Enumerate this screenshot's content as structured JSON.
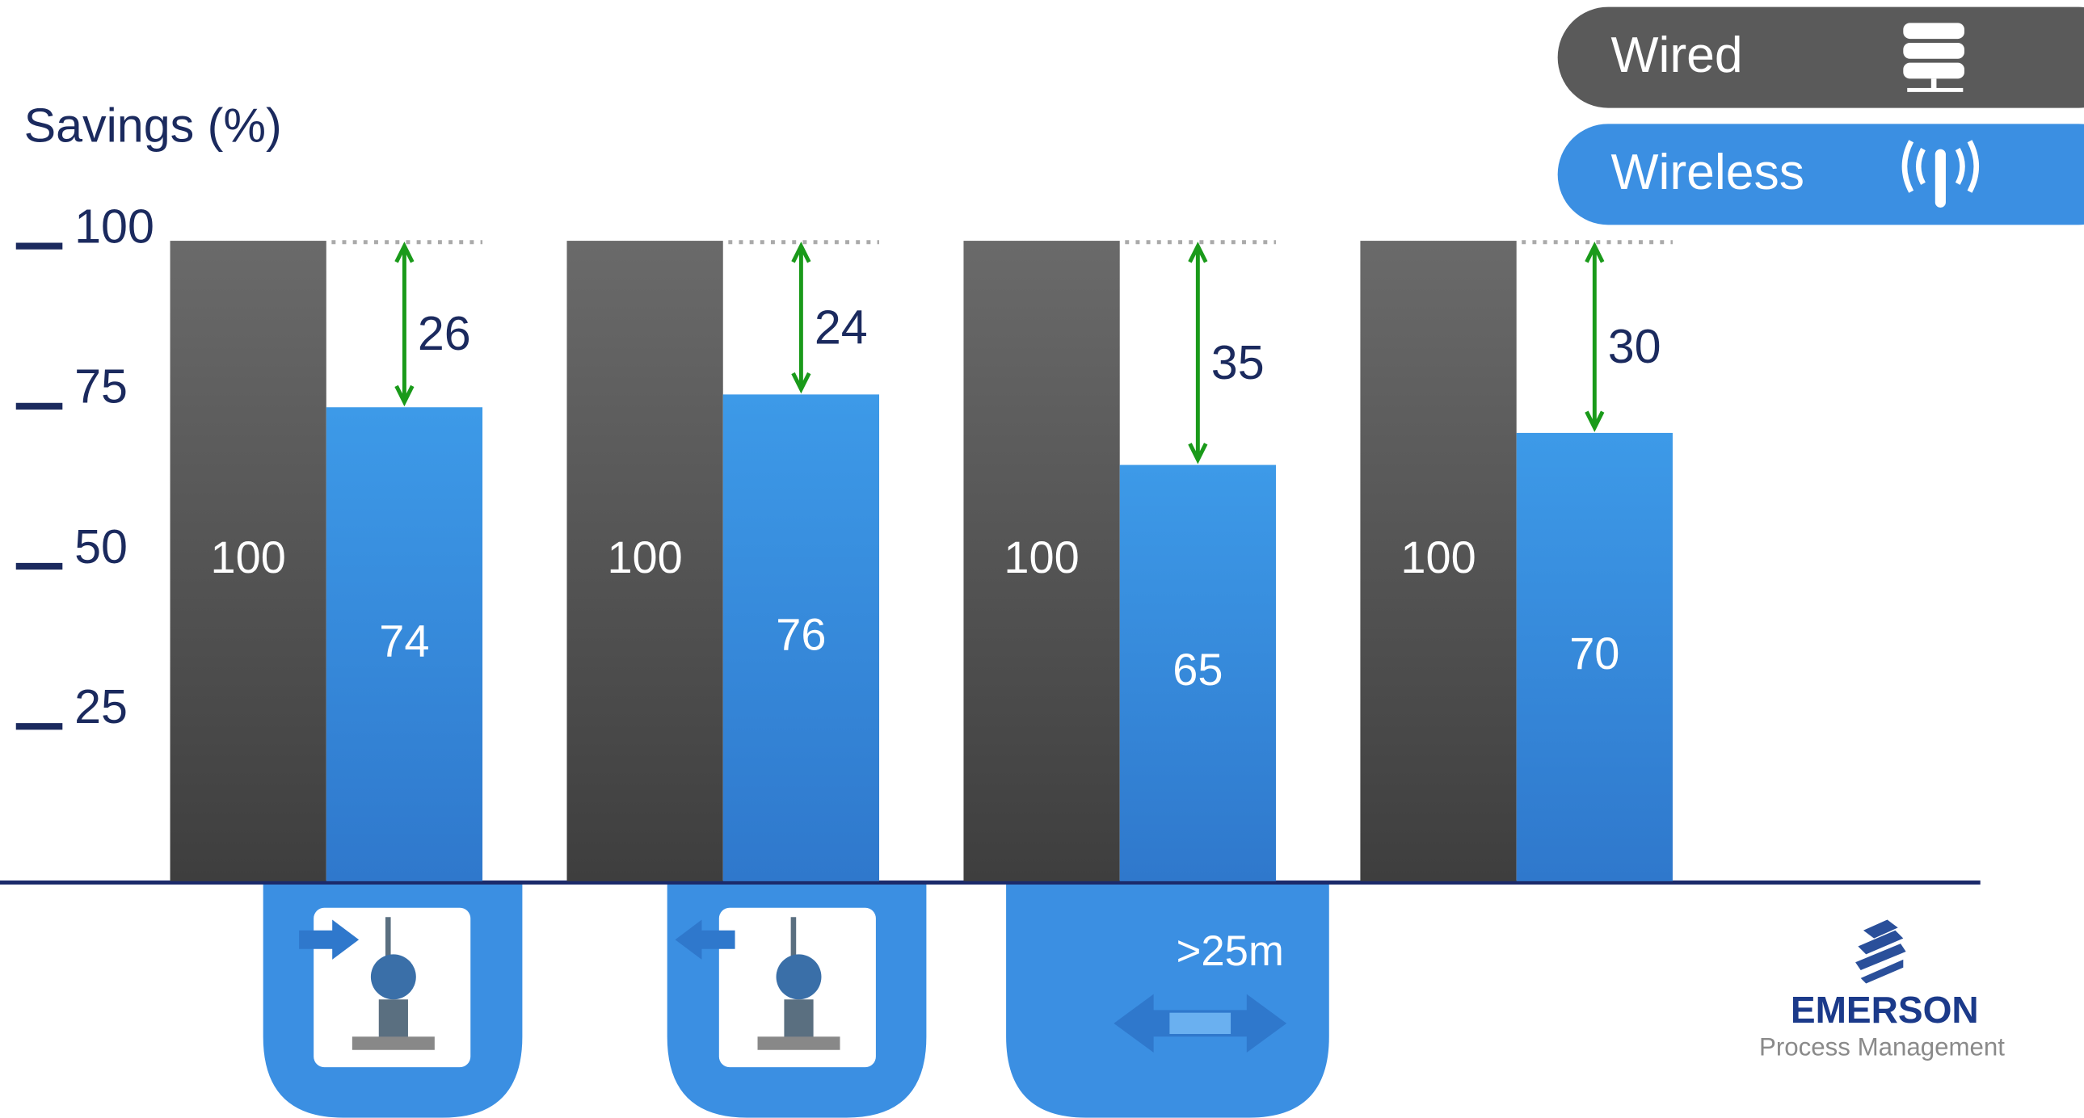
{
  "chart_data": {
    "type": "bar",
    "y_label": "Savings (%)",
    "categories": [
      null,
      null,
      ">25m",
      null
    ],
    "series": [
      {
        "name": "Wired",
        "color": "#4d4d4d",
        "values": [
          100,
          100,
          100,
          100
        ]
      },
      {
        "name": "Wireless",
        "color": "#3b8fe2",
        "values": [
          74,
          76,
          65,
          70
        ]
      }
    ],
    "differences": [
      26,
      24,
      35,
      30
    ],
    "ylim": [
      0,
      100
    ],
    "yticks": [
      25,
      50,
      75,
      100
    ],
    "grid": false
  },
  "logo": {
    "name": "EMERSON",
    "subtitle": "Process Management"
  }
}
